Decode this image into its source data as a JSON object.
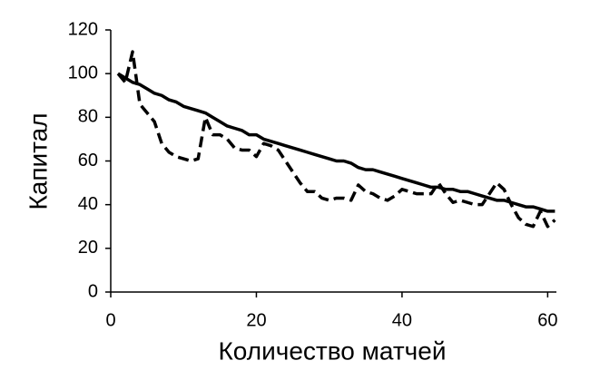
{
  "chart_data": {
    "type": "line",
    "xlabel": "Количество матчей",
    "ylabel": "Капитал",
    "x": [
      1,
      2,
      3,
      4,
      5,
      6,
      7,
      8,
      9,
      10,
      11,
      12,
      13,
      14,
      15,
      16,
      17,
      18,
      19,
      20,
      21,
      22,
      23,
      24,
      25,
      26,
      27,
      28,
      29,
      30,
      31,
      32,
      33,
      34,
      35,
      36,
      37,
      38,
      39,
      40,
      41,
      42,
      43,
      44,
      45,
      46,
      47,
      48,
      49,
      50,
      51,
      52,
      53,
      54,
      55,
      56,
      57,
      58,
      59,
      60,
      61
    ],
    "series": [
      {
        "color": "#000000",
        "dashed": false,
        "values": [
          100,
          98,
          96,
          95,
          93,
          91,
          90,
          88,
          87,
          85,
          84,
          83,
          82,
          80,
          78,
          76,
          75,
          74,
          72,
          72,
          70,
          69,
          68,
          67,
          66,
          65,
          64,
          63,
          62,
          61,
          60,
          60,
          59,
          57,
          56,
          56,
          55,
          54,
          53,
          52,
          51,
          50,
          49,
          48,
          48,
          47,
          47,
          46,
          46,
          45,
          44,
          43,
          42,
          42,
          41,
          40,
          39,
          39,
          38,
          37,
          37
        ]
      },
      {
        "color": "#000000",
        "dashed": true,
        "values": [
          100,
          96,
          110,
          86,
          82,
          78,
          68,
          64,
          62,
          61,
          60,
          61,
          80,
          72,
          72,
          70,
          66,
          65,
          65,
          62,
          68,
          67,
          65,
          60,
          55,
          50,
          46,
          46,
          43,
          42,
          43,
          43,
          42,
          49,
          46,
          45,
          43,
          42,
          44,
          47,
          46,
          45,
          45,
          45,
          50,
          45,
          41,
          42,
          41,
          40,
          40,
          45,
          50,
          47,
          40,
          34,
          31,
          30,
          37,
          30,
          33
        ]
      }
    ],
    "xlim": [
      0,
      61.2
    ],
    "ylim": [
      0,
      120
    ],
    "xticks": [
      0,
      20,
      40,
      60
    ],
    "yticks": [
      0,
      20,
      40,
      60,
      80,
      100,
      120
    ],
    "grid": false
  }
}
